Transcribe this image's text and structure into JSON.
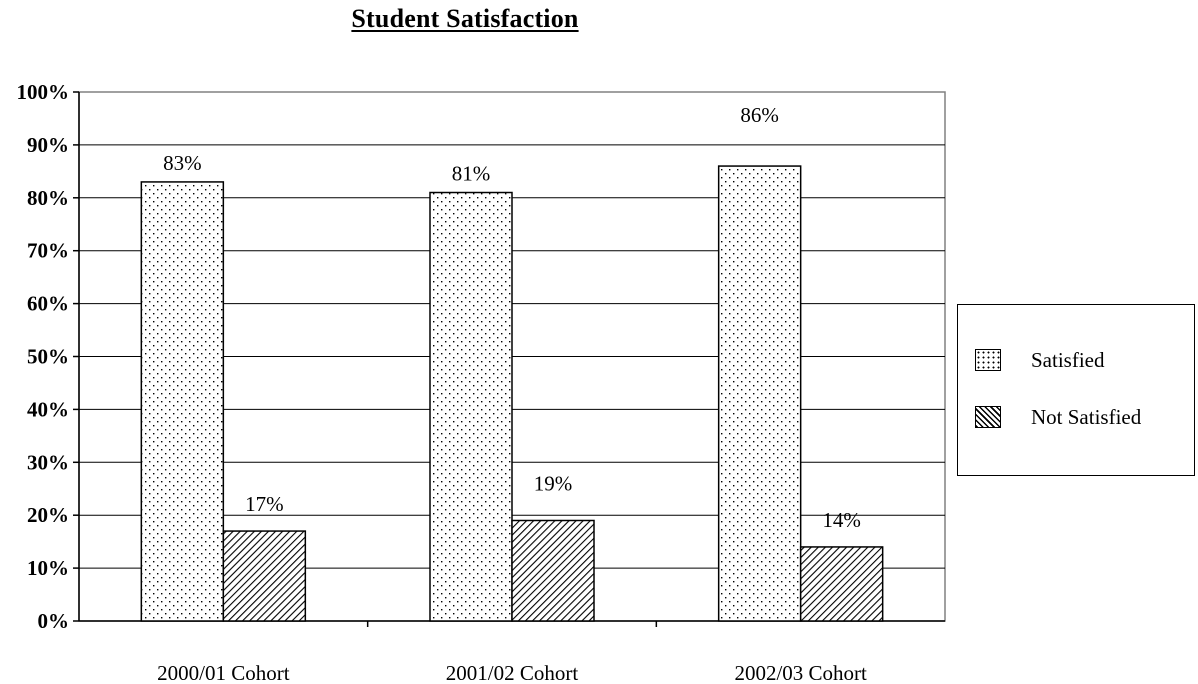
{
  "chart_data": {
    "type": "bar",
    "title": "Student Satisfaction",
    "xlabel": "",
    "ylabel": "",
    "categories": [
      "2000/01 Cohort",
      "2001/02 Cohort",
      "2002/03 Cohort"
    ],
    "series": [
      {
        "name": "Satisfied",
        "values": [
          83,
          81,
          86
        ],
        "data_labels": [
          "83%",
          "81%",
          "86%"
        ],
        "pattern": "dotted"
      },
      {
        "name": "Not Satisfied",
        "values": [
          17,
          19,
          14
        ],
        "data_labels": [
          "17%",
          "19%",
          "14%"
        ],
        "pattern": "diagonal-hatch"
      }
    ],
    "ylim": [
      0,
      100
    ],
    "yticks": [
      0,
      10,
      20,
      30,
      40,
      50,
      60,
      70,
      80,
      90,
      100
    ],
    "ytick_labels": [
      "0%",
      "10%",
      "20%",
      "30%",
      "40%",
      "50%",
      "60%",
      "70%",
      "80%",
      "90%",
      "100%"
    ],
    "grid": true,
    "legend_position": "right",
    "colors": {
      "bar_fill": "#ffffff",
      "bar_outline": "#000000",
      "gridline": "#000000",
      "plot_border": "#808080"
    }
  }
}
